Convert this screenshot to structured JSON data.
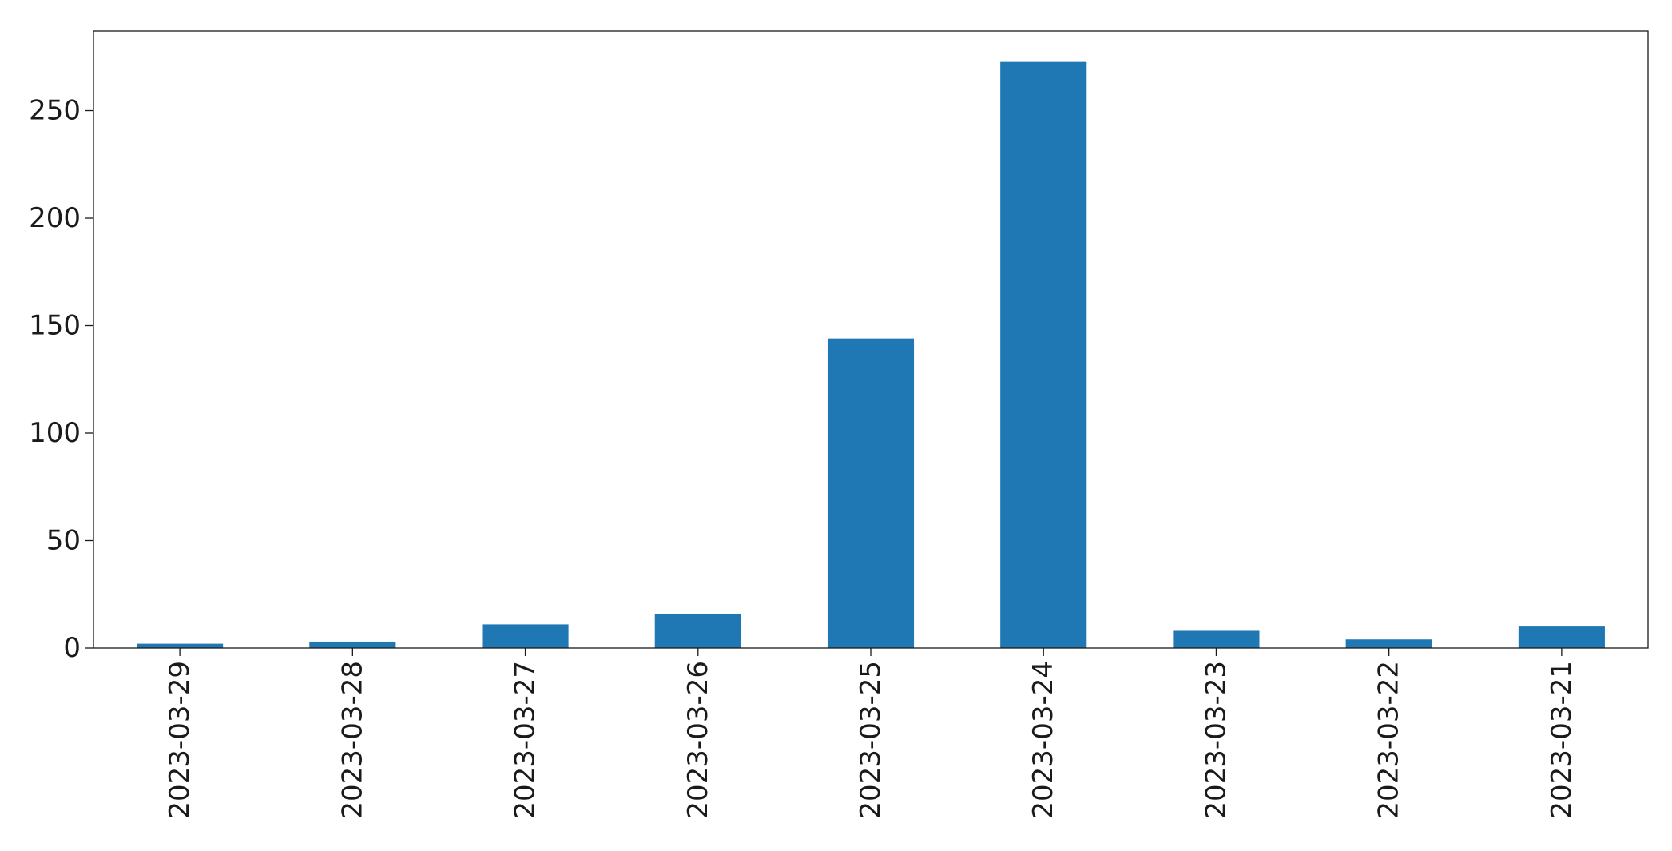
{
  "chart_data": {
    "type": "bar",
    "title": "",
    "xlabel": "",
    "ylabel": "",
    "categories": [
      "2023-03-29",
      "2023-03-28",
      "2023-03-27",
      "2023-03-26",
      "2023-03-25",
      "2023-03-24",
      "2023-03-23",
      "2023-03-22",
      "2023-03-21"
    ],
    "values": [
      2,
      3,
      11,
      16,
      144,
      273,
      8,
      4,
      10
    ],
    "ylim": [
      0,
      287
    ],
    "yticks": [
      0,
      50,
      100,
      150,
      200,
      250
    ],
    "grid": false,
    "legend": "none",
    "bar_color": "#1f77b4"
  }
}
